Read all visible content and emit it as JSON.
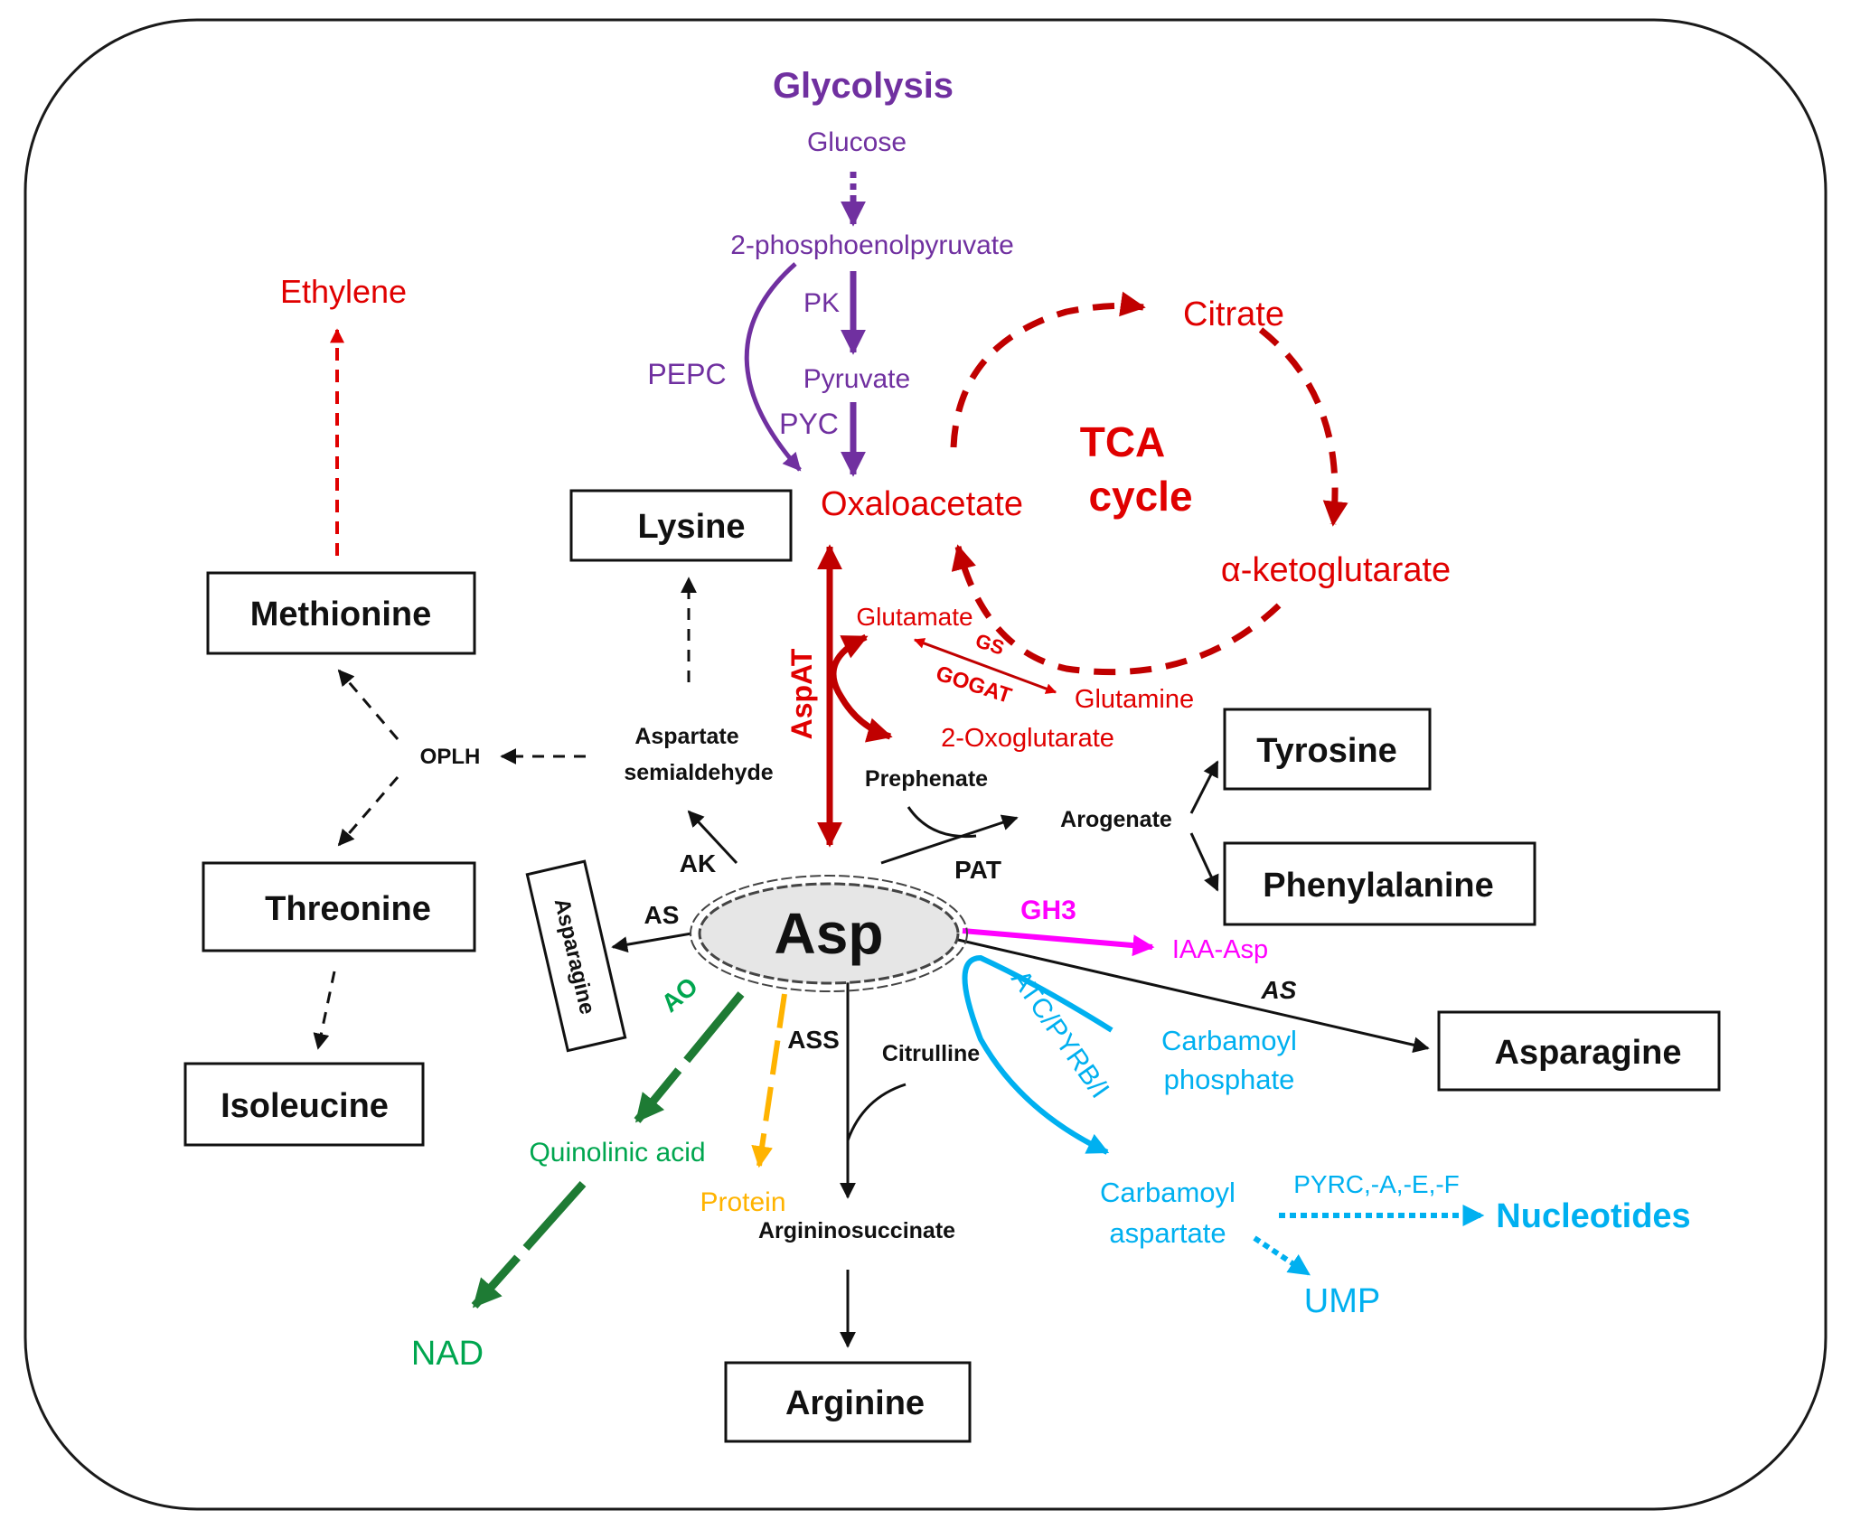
{
  "colors": {
    "glycolysis": "#7030a0",
    "tca": "#e00000",
    "black": "#111111",
    "nad": "#1e7b34",
    "nad_text": "#00a64f",
    "protein": "#ffb300",
    "pyrimidine": "#00b0f0",
    "gh3": "#ff00ff",
    "asp_fill": "#e6e6e6"
  },
  "glycolysis": {
    "title": "Glycolysis",
    "glucose": "Glucose",
    "pep": "2-phosphoenolpyruvate",
    "pk": "PK",
    "pepc": "PEPC",
    "pyruvate": "Pyruvate",
    "pyc": "PYC"
  },
  "tca": {
    "oxaloacetate": "Oxaloacetate",
    "citrate": "Citrate",
    "label_1": "TCA",
    "label_2": "cycle",
    "akg": "α-ketoglutarate",
    "glutamate": "Glutamate",
    "gs": "GS",
    "gogat": "GOGAT",
    "glutamine": "Glutamine",
    "oxoglutarate": "2-Oxoglutarate",
    "aspat": "AspAT"
  },
  "boxes": {
    "lysine": "Lysine",
    "methionine": "Methionine",
    "threonine": "Threonine",
    "isoleucine": "Isoleucine",
    "asparagine_vertical": "Asparagine",
    "tyrosine": "Tyrosine",
    "phenylalanine": "Phenylalanine",
    "asparagine": "Asparagine",
    "arginine": "Arginine"
  },
  "center": {
    "asp": "Asp"
  },
  "labels": {
    "ethylene": "Ethylene",
    "oplh": "OPLH",
    "asa_1": "Aspartate",
    "asa_2": "semialdehyde",
    "ak": "AK",
    "as_left": "AS",
    "prephenate": "Prephenate",
    "arogenate": "Arogenate",
    "pat": "PAT",
    "gh3": "GH3",
    "iaa_asp": "IAA-Asp",
    "as_right": "AS",
    "ao": "AO",
    "quinolinic": "Quinolinic acid",
    "nad": "NAD",
    "protein": "Protein",
    "ass": "ASS",
    "citrulline": "Citrulline",
    "argininosuccinate": "Argininosuccinate",
    "atc": "ATC/PYRB/I",
    "carbamoyl_p_1": "Carbamoyl",
    "carbamoyl_p_2": "phosphate",
    "carbamoyl_asp_1": "Carbamoyl",
    "carbamoyl_asp_2": "aspartate",
    "pyrc": "PYRC,-A,-E,-F",
    "nucleotides": "Nucleotides",
    "ump": "UMP"
  }
}
